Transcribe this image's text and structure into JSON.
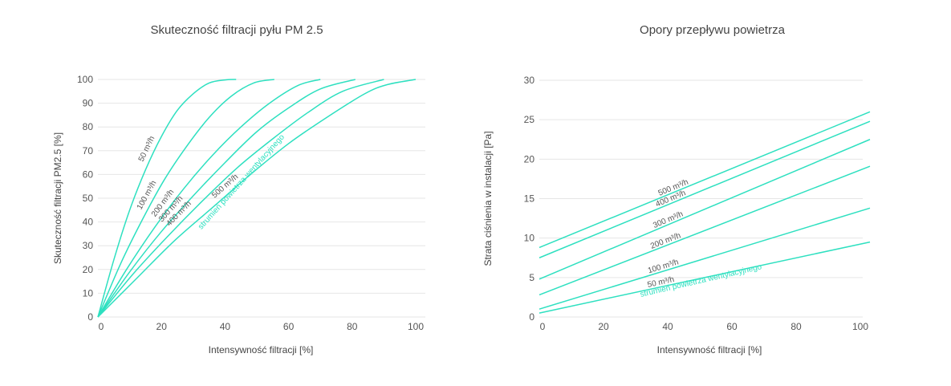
{
  "colors": {
    "curve": "#2ee0c0",
    "grid": "#e6e6e6",
    "axis_text": "#555555",
    "legend_text": "#2ee0c0"
  },
  "chart_data": [
    {
      "type": "line",
      "title": "Skuteczność filtracji pyłu PM 2.5",
      "xlabel": "Intensywność filtracji [%]",
      "ylabel": "Skuteczność filtracji PM2.5 [%]",
      "xlim": [
        0,
        100
      ],
      "ylim": [
        0,
        100
      ],
      "xticks": [
        "0",
        "20",
        "40",
        "60",
        "80",
        "100"
      ],
      "yticks": [
        "0",
        "10",
        "20",
        "30",
        "40",
        "50",
        "60",
        "70",
        "80",
        "90",
        "100"
      ],
      "grid": "horizontal",
      "legend_text": "strumień powietrza wentylacyjnego",
      "series": [
        {
          "name": "50 m³/h",
          "x": [
            0,
            5,
            10,
            15,
            20,
            25,
            30,
            35,
            40,
            43.5
          ],
          "y": [
            0,
            24,
            45,
            62,
            76,
            87,
            94,
            98.5,
            99.8,
            100
          ]
        },
        {
          "name": "100 m³/h",
          "x": [
            0,
            7,
            14,
            21,
            28,
            35,
            42,
            49,
            55.5
          ],
          "y": [
            0,
            22,
            41,
            58,
            72,
            84,
            93,
            98.5,
            100
          ]
        },
        {
          "name": "200 m³/h",
          "x": [
            0,
            9,
            18,
            27,
            36,
            45,
            54,
            63,
            70
          ],
          "y": [
            0,
            20,
            38,
            54,
            68,
            80,
            90,
            97.5,
            100
          ]
        },
        {
          "name": "300 m³/h",
          "x": [
            0,
            10,
            20,
            30,
            40,
            50,
            60,
            70,
            81
          ],
          "y": [
            0,
            19,
            36,
            51,
            65,
            78,
            88,
            96,
            100
          ]
        },
        {
          "name": "400 m³/h",
          "x": [
            0,
            11,
            22,
            33,
            44,
            55,
            66,
            77,
            90
          ],
          "y": [
            0,
            18,
            34,
            49,
            63,
            75,
            86,
            95,
            100
          ]
        },
        {
          "name": "500 m³/h",
          "x": [
            0,
            12,
            24,
            36,
            48,
            60,
            72,
            84,
            91,
            100
          ],
          "y": [
            0,
            16,
            32,
            46,
            60,
            73,
            84,
            94,
            97.8,
            100
          ]
        }
      ]
    },
    {
      "type": "line",
      "title": "Opory przepływu powietrza",
      "xlabel": "Intensywność filtracji [%]",
      "ylabel": "Strata ciśnienia w instalacji [Pa]",
      "xlim": [
        0,
        100
      ],
      "ylim": [
        0,
        30
      ],
      "xticks": [
        "0",
        "20",
        "40",
        "60",
        "80",
        "100"
      ],
      "yticks": [
        "0",
        "5",
        "10",
        "15",
        "20",
        "25",
        "30"
      ],
      "grid": "horizontal",
      "legend_text": "strumień powietrza wentylacyjnego",
      "series": [
        {
          "name": "500 m³/h",
          "x": [
            0,
            103
          ],
          "y": [
            8.8,
            26
          ]
        },
        {
          "name": "400 m³/h",
          "x": [
            0,
            103
          ],
          "y": [
            7.5,
            24.8
          ]
        },
        {
          "name": "300 m³/h",
          "x": [
            0,
            103
          ],
          "y": [
            4.8,
            22.5
          ]
        },
        {
          "name": "200 m³/h",
          "x": [
            0,
            103
          ],
          "y": [
            2.8,
            19.1
          ]
        },
        {
          "name": "100 m³/h",
          "x": [
            0,
            103
          ],
          "y": [
            1.0,
            13.8
          ]
        },
        {
          "name": "50 m³/h",
          "x": [
            0,
            103
          ],
          "y": [
            0.5,
            9.5
          ]
        }
      ]
    }
  ]
}
